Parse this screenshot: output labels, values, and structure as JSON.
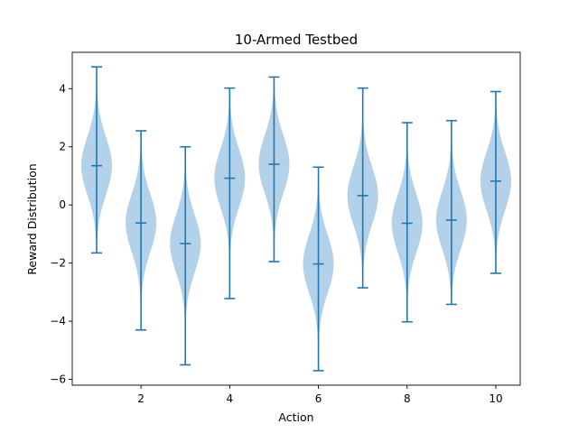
{
  "chart_data": {
    "type": "violin",
    "title": "10-Armed Testbed",
    "xlabel": "Action",
    "ylabel": "Reward Distribution",
    "x": [
      1,
      2,
      3,
      4,
      5,
      6,
      7,
      8,
      9,
      10
    ],
    "xticks": [
      2,
      4,
      6,
      8,
      10
    ],
    "yticks": [
      -6,
      -4,
      -2,
      0,
      2,
      4
    ],
    "xlim": [
      0.45,
      10.55
    ],
    "ylim": [
      -6.2,
      5.25
    ],
    "grid": false,
    "colors": {
      "body": "#b3d1e8",
      "lines": "#1f77b4"
    },
    "violins": [
      {
        "x": 1,
        "mean": 1.35,
        "min": -1.65,
        "max": 4.75
      },
      {
        "x": 2,
        "mean": -0.62,
        "min": -4.3,
        "max": 2.55
      },
      {
        "x": 3,
        "mean": -1.33,
        "min": -5.5,
        "max": 2.0
      },
      {
        "x": 4,
        "mean": 0.92,
        "min": -3.22,
        "max": 4.02
      },
      {
        "x": 5,
        "mean": 1.4,
        "min": -1.95,
        "max": 4.4
      },
      {
        "x": 6,
        "mean": -2.03,
        "min": -5.7,
        "max": 1.3
      },
      {
        "x": 7,
        "mean": 0.32,
        "min": -2.85,
        "max": 4.02
      },
      {
        "x": 8,
        "mean": -0.63,
        "min": -4.02,
        "max": 2.83
      },
      {
        "x": 9,
        "mean": -0.52,
        "min": -3.42,
        "max": 2.9
      },
      {
        "x": 10,
        "mean": 0.82,
        "min": -2.35,
        "max": 3.9
      }
    ]
  }
}
